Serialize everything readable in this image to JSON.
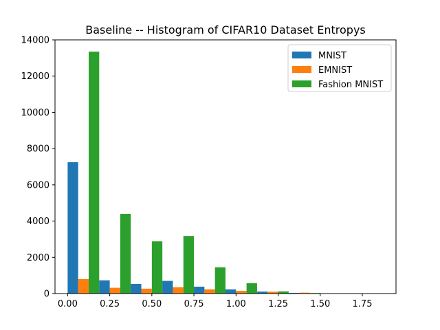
{
  "chart_data": {
    "type": "bar",
    "title": "Baseline -- Histogram of CIFAR10 Dataset Entropys",
    "xlabel": "",
    "ylabel": "",
    "xlim": [
      -0.075,
      1.95
    ],
    "ylim": [
      0,
      14000
    ],
    "xticks": [
      "0.00",
      "0.25",
      "0.50",
      "0.75",
      "1.00",
      "1.25",
      "1.50",
      "1.75"
    ],
    "xtick_values": [
      0,
      0.25,
      0.5,
      0.75,
      1.0,
      1.25,
      1.5,
      1.75
    ],
    "yticks": [
      "0",
      "2000",
      "4000",
      "6000",
      "8000",
      "10000",
      "12000",
      "14000"
    ],
    "ytick_values": [
      0,
      2000,
      4000,
      6000,
      8000,
      10000,
      12000,
      14000
    ],
    "bin_edges": [
      0,
      0.1875,
      0.375,
      0.5625,
      0.75,
      0.9375,
      1.125,
      1.3125,
      1.5,
      1.6875,
      1.875
    ],
    "series": [
      {
        "name": "MNIST",
        "color": "#1f77b4",
        "values": [
          7250,
          730,
          530,
          700,
          380,
          230,
          110,
          40,
          10,
          0
        ]
      },
      {
        "name": "EMNIST",
        "color": "#ff7f0e",
        "values": [
          800,
          320,
          270,
          350,
          230,
          150,
          100,
          50,
          10,
          0
        ]
      },
      {
        "name": "Fashion MNIST",
        "color": "#2ca02c",
        "values": [
          13350,
          4400,
          2880,
          3180,
          1450,
          570,
          120,
          30,
          5,
          0
        ]
      }
    ],
    "legend_position": "top-right",
    "grid": false
  }
}
